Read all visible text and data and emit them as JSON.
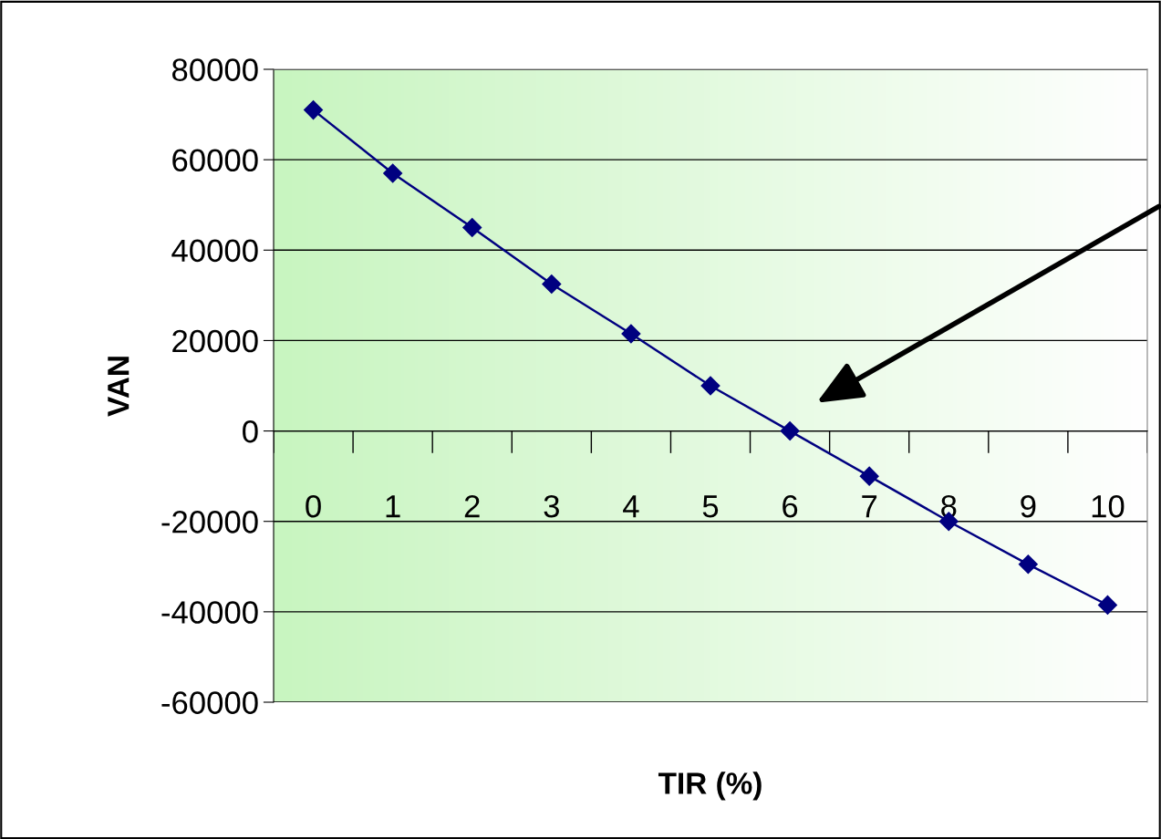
{
  "chart_data": {
    "type": "line",
    "xlabel": "TIR (%)",
    "ylabel": "VAN",
    "categories": [
      "0",
      "1",
      "2",
      "3",
      "4",
      "5",
      "6",
      "7",
      "8",
      "9",
      "10"
    ],
    "series": [
      {
        "color": "#000080",
        "values": [
          71000,
          57000,
          45000,
          32500,
          21500,
          10000,
          0,
          -10000,
          -20000,
          -29500,
          -38500
        ]
      }
    ],
    "ylim": [
      -60000,
      80000
    ],
    "yticks": [
      -60000,
      -40000,
      -20000,
      0,
      20000,
      40000,
      60000,
      80000
    ],
    "grid": "y",
    "marker": "diamond",
    "line_style": "solid"
  }
}
